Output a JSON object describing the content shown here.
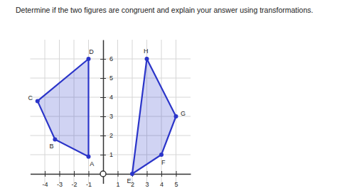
{
  "chart_data": {
    "type": "polygon",
    "title": "Determine if the two figures are congruent and explain your answer using transformations.",
    "series": [
      {
        "labels": [
          "D",
          "C",
          "B",
          "A"
        ],
        "x": [
          -1,
          -4.5,
          -3.3,
          -1
        ],
        "y": [
          6,
          3.8,
          1.8,
          0.9
        ],
        "color": "#2b35c9"
      },
      {
        "labels": [
          "H",
          "G",
          "F",
          "E"
        ],
        "x": [
          3,
          5,
          4,
          2
        ],
        "y": [
          6,
          3,
          1,
          0
        ],
        "color": "#2b35c9"
      }
    ],
    "xlim": [
      -5,
      6
    ],
    "ylim": [
      -0.5,
      7
    ],
    "xticks": [
      -4,
      -3,
      -2,
      -1,
      1,
      2,
      3,
      4,
      5
    ],
    "yticks": [
      1,
      2,
      3,
      4,
      5,
      6
    ],
    "grid": true
  }
}
